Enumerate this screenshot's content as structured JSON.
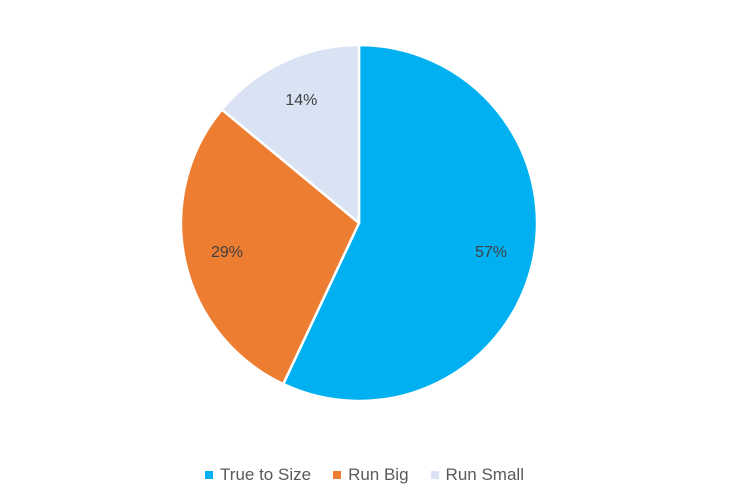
{
  "chart_data": {
    "type": "pie",
    "title": "",
    "slices": [
      {
        "label": "True to Size",
        "value": 57,
        "display": "57%",
        "color": "#00B0F0"
      },
      {
        "label": "Run Big",
        "value": 29,
        "display": "29%",
        "color": "#ED7D31"
      },
      {
        "label": "Run Small",
        "value": 14,
        "display": "14%",
        "color": "#DAE3F3"
      }
    ],
    "legend_position": "bottom",
    "start_angle": "12 o'clock, clockwise",
    "label_color": "#404040"
  }
}
